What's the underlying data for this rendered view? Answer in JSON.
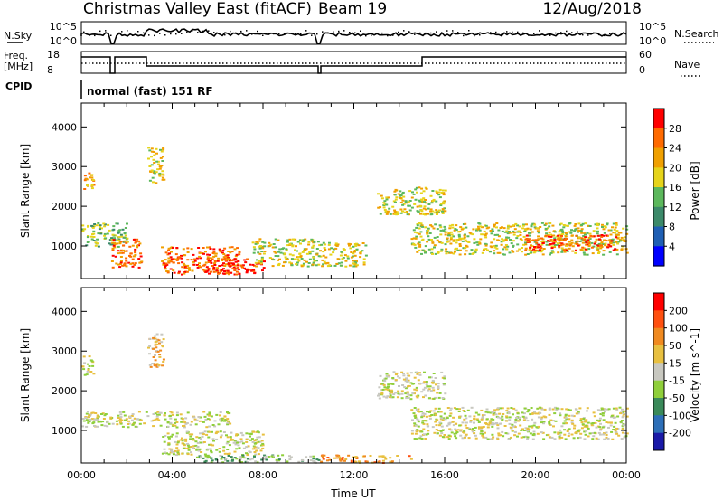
{
  "header": {
    "title": "Christmas Valley East (fitACF)",
    "beam": "Beam 19",
    "date": "12/Aug/2018"
  },
  "nsky_panel": {
    "left_label": "N.Sky",
    "left_ticks": [
      "10^5",
      "10^0"
    ],
    "right_ticks": [
      "10^5",
      "10^0"
    ],
    "right_label": "N.Search"
  },
  "freq_panel": {
    "left_label_1": "Freq.",
    "left_label_2": "[MHz]",
    "left_ticks": [
      "18",
      "8"
    ],
    "right_ticks": [
      "60",
      "0"
    ],
    "right_label": "Nave"
  },
  "cpid_panel": {
    "label": "CPID",
    "text": "normal (fast) 151 RF"
  },
  "chart_data": [
    {
      "type": "heatmap",
      "name": "power",
      "ylabel": "Slant Range [km]",
      "yticks": [
        "1000",
        "2000",
        "3000",
        "4000"
      ],
      "ylim": [
        180,
        4600
      ],
      "xlim_hours": [
        0,
        24
      ],
      "colorbar_label": "Power [dB]",
      "colorbar_ticks": [
        "4",
        "8",
        "12",
        "16",
        "20",
        "24",
        "28"
      ],
      "colors": [
        "#0000ff",
        "#1f5fb4",
        "#3c8a6a",
        "#5cb85c",
        "#e6d41a",
        "#f0a000",
        "#ff6a00",
        "#ff0000"
      ],
      "regions": [
        {
          "t0": 0.0,
          "t1": 0.5,
          "r0": 2400,
          "r1": 2900,
          "level": 5
        },
        {
          "t0": 0.0,
          "t1": 2.0,
          "r0": 1000,
          "r1": 1600,
          "level": 3
        },
        {
          "t0": 1.3,
          "t1": 2.6,
          "r0": 450,
          "r1": 1200,
          "level": 6
        },
        {
          "t0": 2.9,
          "t1": 3.6,
          "r0": 2600,
          "r1": 3500,
          "level": 4
        },
        {
          "t0": 3.5,
          "t1": 7.0,
          "r0": 300,
          "r1": 1000,
          "level": 6
        },
        {
          "t0": 5.5,
          "t1": 8.0,
          "r0": 300,
          "r1": 700,
          "level": 7
        },
        {
          "t0": 7.5,
          "t1": 10.5,
          "r0": 500,
          "r1": 1200,
          "level": 4
        },
        {
          "t0": 10.5,
          "t1": 12.5,
          "r0": 500,
          "r1": 1100,
          "level": 4
        },
        {
          "t0": 13.0,
          "t1": 16.0,
          "r0": 1800,
          "r1": 2500,
          "level": 4
        },
        {
          "t0": 14.5,
          "t1": 24.0,
          "r0": 800,
          "r1": 1600,
          "level": 4
        },
        {
          "t0": 19.5,
          "t1": 23.5,
          "r0": 900,
          "r1": 1300,
          "level": 6
        }
      ]
    },
    {
      "type": "heatmap",
      "name": "velocity",
      "ylabel": "Slant Range [km]",
      "yticks": [
        "1000",
        "2000",
        "3000",
        "4000"
      ],
      "ylim": [
        180,
        4600
      ],
      "xlabel": "Time UT",
      "xticks": [
        "00:00",
        "04:00",
        "08:00",
        "12:00",
        "16:00",
        "20:00",
        "00:00"
      ],
      "xlim_hours": [
        0,
        24
      ],
      "colorbar_label": "Velocity [m s^-1]",
      "colorbar_ticks": [
        "200",
        "100",
        "50",
        "15",
        "-15",
        "-50",
        "-100",
        "-200"
      ],
      "colors": [
        "#1a1aa8",
        "#2d6fb8",
        "#3a8a5a",
        "#8fcf3a",
        "#c8c8c0",
        "#e8c040",
        "#f08a20",
        "#ff5010",
        "#ff0000"
      ],
      "regions": [
        {
          "t0": 0.0,
          "t1": 0.5,
          "r0": 2400,
          "r1": 2900,
          "level": 4
        },
        {
          "t0": 0.0,
          "t1": 6.5,
          "r0": 1100,
          "r1": 1500,
          "level": 4
        },
        {
          "t0": 2.9,
          "t1": 3.6,
          "r0": 2600,
          "r1": 3500,
          "level": 5
        },
        {
          "t0": 3.5,
          "t1": 8.0,
          "r0": 400,
          "r1": 1000,
          "level": 4
        },
        {
          "t0": 5.0,
          "t1": 10.5,
          "r0": 200,
          "r1": 400,
          "level": 3
        },
        {
          "t0": 10.5,
          "t1": 14.5,
          "r0": 200,
          "r1": 400,
          "level": 6
        },
        {
          "t0": 13.0,
          "t1": 16.0,
          "r0": 1800,
          "r1": 2500,
          "level": 4
        },
        {
          "t0": 14.5,
          "t1": 24.0,
          "r0": 800,
          "r1": 1600,
          "level": 4
        }
      ]
    }
  ]
}
